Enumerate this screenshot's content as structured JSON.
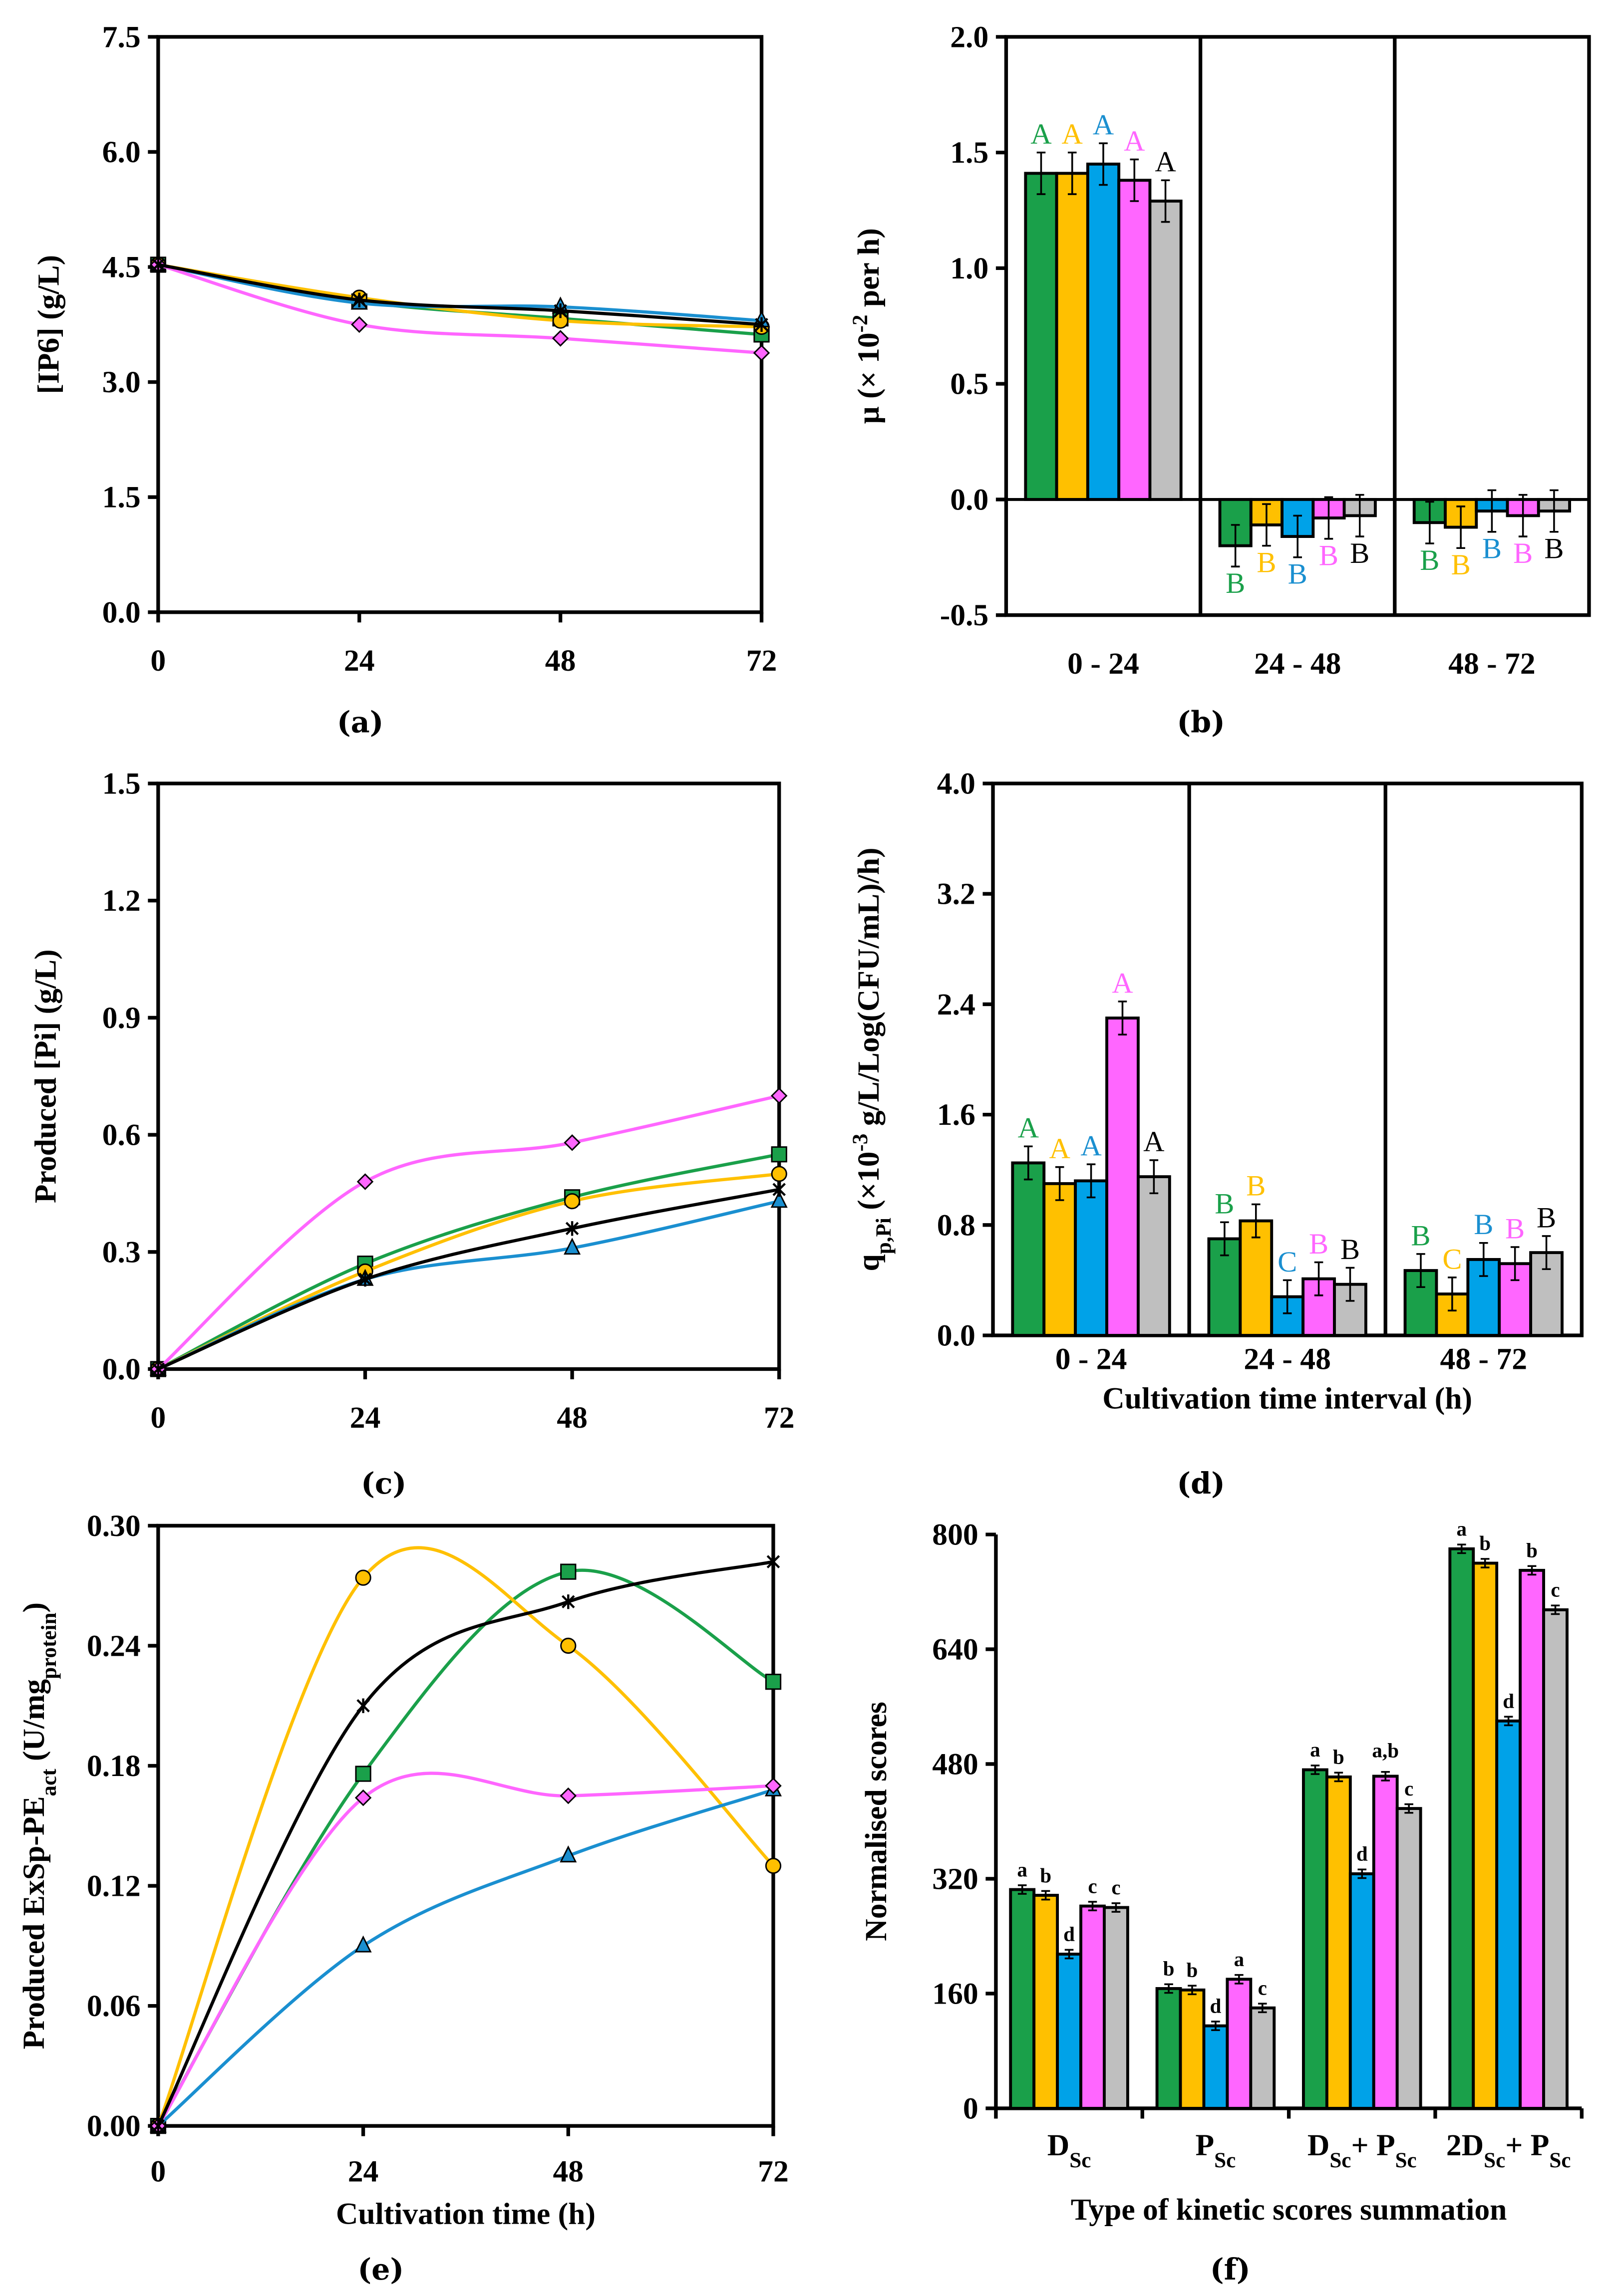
{
  "colors": {
    "green": "#1aa04a",
    "yellow": "#ffc000",
    "blue": "#1a9ad6",
    "pink": "#ff66ff",
    "gray": "#bfbfbf",
    "black": "#000000"
  },
  "chart_data": [
    {
      "panel": "(a)",
      "type": "line",
      "ylabel": [
        [
          "[IP6] (g/L)",
          ""
        ]
      ],
      "xlabel": [],
      "x": [
        0,
        24,
        48,
        72
      ],
      "xticks": [
        "0",
        "24",
        "48",
        "72"
      ],
      "xlim": [
        0,
        72
      ],
      "ylim": [
        0,
        7.5
      ],
      "yticks": [
        "0.0",
        "1.5",
        "3.0",
        "4.5",
        "6.0",
        "7.5"
      ],
      "series": [
        {
          "name": "green",
          "color": "#1aa04a",
          "marker": "square",
          "values": [
            4.53,
            4.05,
            3.83,
            3.62
          ]
        },
        {
          "name": "yellow",
          "color": "#ffc000",
          "marker": "circle",
          "values": [
            4.53,
            4.1,
            3.8,
            3.72
          ]
        },
        {
          "name": "blue",
          "color": "#1a8fd0",
          "marker": "triangle",
          "values": [
            4.53,
            4.03,
            3.98,
            3.8
          ]
        },
        {
          "name": "pink",
          "color": "#ff66ff",
          "marker": "diamond",
          "values": [
            4.53,
            3.75,
            3.57,
            3.38
          ]
        },
        {
          "name": "black",
          "color": "#000000",
          "marker": "star",
          "values": [
            4.53,
            4.07,
            3.93,
            3.75
          ]
        }
      ]
    },
    {
      "panel": "(b)",
      "type": "bar",
      "ylabel": [
        [
          "μ (× 10",
          ""
        ],
        [
          "-2",
          "sup"
        ],
        [
          " per h)",
          ""
        ]
      ],
      "xlabel": [],
      "categories": [
        [
          [
            "0 - 24",
            ""
          ]
        ],
        [
          [
            "24 - 48",
            ""
          ]
        ],
        [
          [
            "48 - 72",
            ""
          ]
        ]
      ],
      "ylim": [
        -0.5,
        2.0
      ],
      "yticks": [
        "-0.5",
        "0.0",
        "0.5",
        "1.0",
        "1.5",
        "2.0"
      ],
      "error": 0.09,
      "series_colors": [
        "#1aa04a",
        "#ffc000",
        "#00a2e8",
        "#ff66ff",
        "#bfbfbf"
      ],
      "label_colors": [
        "#1aa04a",
        "#ffc000",
        "#1a8fd0",
        "#ff66ff",
        "#000000"
      ],
      "values": [
        [
          1.41,
          1.41,
          1.45,
          1.38,
          1.29
        ],
        [
          -0.2,
          -0.11,
          -0.16,
          -0.08,
          -0.07
        ],
        [
          -0.1,
          -0.12,
          -0.05,
          -0.07,
          -0.05
        ]
      ],
      "letters": [
        [
          "A",
          "A",
          "A",
          "A",
          "A"
        ],
        [
          "B",
          "B",
          "B",
          "B",
          "B"
        ],
        [
          "B",
          "B",
          "B",
          "B",
          "B"
        ]
      ]
    },
    {
      "panel": "(c)",
      "type": "line",
      "ylabel": [
        [
          "Produced [Pi] (g/L)",
          ""
        ]
      ],
      "xlabel": [],
      "x": [
        0,
        24,
        48,
        72
      ],
      "xticks": [
        "0",
        "24",
        "48",
        "72"
      ],
      "xlim": [
        0,
        72
      ],
      "ylim": [
        0,
        1.5
      ],
      "yticks": [
        "0.0",
        "0.3",
        "0.6",
        "0.9",
        "1.2",
        "1.5"
      ],
      "series": [
        {
          "name": "green",
          "color": "#1aa04a",
          "marker": "square",
          "values": [
            0,
            0.27,
            0.44,
            0.55
          ]
        },
        {
          "name": "yellow",
          "color": "#ffc000",
          "marker": "circle",
          "values": [
            0,
            0.25,
            0.43,
            0.5
          ]
        },
        {
          "name": "blue",
          "color": "#1a8fd0",
          "marker": "triangle",
          "values": [
            0,
            0.23,
            0.31,
            0.43
          ]
        },
        {
          "name": "pink",
          "color": "#ff66ff",
          "marker": "diamond",
          "values": [
            0,
            0.48,
            0.58,
            0.7
          ]
        },
        {
          "name": "black",
          "color": "#000000",
          "marker": "star",
          "values": [
            0,
            0.23,
            0.36,
            0.46
          ]
        }
      ]
    },
    {
      "panel": "(d)",
      "type": "bar",
      "ylabel": [
        [
          "q",
          ""
        ],
        [
          "p,Pi",
          "sub"
        ],
        [
          " (×10",
          ""
        ],
        [
          "-3",
          "sup"
        ],
        [
          " g/L/Log(CFU/mL)/h)",
          ""
        ]
      ],
      "xlabel": [
        [
          "Cultivation time interval (h)",
          ""
        ]
      ],
      "categories": [
        [
          [
            "0 - 24",
            ""
          ]
        ],
        [
          [
            "24 - 48",
            ""
          ]
        ],
        [
          [
            "48 - 72",
            ""
          ]
        ]
      ],
      "ylim": [
        0,
        4.0
      ],
      "yticks": [
        "0.0",
        "0.8",
        "1.6",
        "2.4",
        "3.2",
        "4.0"
      ],
      "error": 0.12,
      "series_colors": [
        "#1aa04a",
        "#ffc000",
        "#00a2e8",
        "#ff66ff",
        "#bfbfbf"
      ],
      "label_colors": [
        "#1aa04a",
        "#ffc000",
        "#1a8fd0",
        "#ff66ff",
        "#000000"
      ],
      "values": [
        [
          1.25,
          1.1,
          1.12,
          2.3,
          1.15
        ],
        [
          0.7,
          0.83,
          0.28,
          0.41,
          0.37
        ],
        [
          0.47,
          0.3,
          0.55,
          0.52,
          0.6
        ]
      ],
      "letters": [
        [
          "A",
          "A",
          "A",
          "A",
          "A"
        ],
        [
          "B",
          "B",
          "C",
          "B",
          "B"
        ],
        [
          "B",
          "C",
          "B",
          "B",
          "B"
        ]
      ]
    },
    {
      "panel": "(e)",
      "type": "line",
      "ylabel": [
        [
          "Produced ExSp-PE",
          ""
        ],
        [
          "act",
          "sub"
        ],
        [
          " (U/mg",
          ""
        ],
        [
          "protein",
          "sub"
        ],
        [
          ")",
          ""
        ]
      ],
      "xlabel": [
        [
          "Cultivation time (h)",
          ""
        ]
      ],
      "x": [
        0,
        24,
        48,
        72
      ],
      "xticks": [
        "0",
        "24",
        "48",
        "72"
      ],
      "xlim": [
        0,
        72
      ],
      "ylim": [
        0,
        0.3
      ],
      "yticks": [
        "0.00",
        "0.06",
        "0.12",
        "0.18",
        "0.24",
        "0.30"
      ],
      "series": [
        {
          "name": "green",
          "color": "#1aa04a",
          "marker": "square",
          "values": [
            0,
            0.176,
            0.277,
            0.222
          ]
        },
        {
          "name": "yellow",
          "color": "#ffc000",
          "marker": "circle",
          "values": [
            0,
            0.274,
            0.24,
            0.13
          ]
        },
        {
          "name": "blue",
          "color": "#1a8fd0",
          "marker": "triangle",
          "values": [
            0,
            0.09,
            0.135,
            0.168
          ]
        },
        {
          "name": "pink",
          "color": "#ff66ff",
          "marker": "diamond",
          "values": [
            0,
            0.164,
            0.165,
            0.17
          ]
        },
        {
          "name": "black",
          "color": "#000000",
          "marker": "star",
          "values": [
            0,
            0.21,
            0.262,
            0.282
          ]
        }
      ]
    },
    {
      "panel": "(f)",
      "type": "bar",
      "ylabel": [
        [
          "Normalised scores",
          ""
        ]
      ],
      "xlabel": [
        [
          "Type of kinetic scores summation",
          ""
        ]
      ],
      "categories": [
        [
          [
            "D",
            ""
          ],
          [
            "Sc",
            "sub"
          ]
        ],
        [
          [
            "P",
            ""
          ],
          [
            "Sc",
            "sub"
          ]
        ],
        [
          [
            "D",
            ""
          ],
          [
            "Sc",
            "sub"
          ],
          [
            "+ P",
            ""
          ],
          [
            "Sc",
            "sub"
          ]
        ],
        [
          [
            "2D",
            ""
          ],
          [
            "Sc",
            "sub"
          ],
          [
            "+ P",
            ""
          ],
          [
            "Sc",
            "sub"
          ]
        ]
      ],
      "ylim": [
        0,
        800
      ],
      "yticks": [
        "0",
        "160",
        "320",
        "480",
        "640",
        "800"
      ],
      "error": 6,
      "series_colors": [
        "#1aa04a",
        "#ffc000",
        "#00a2e8",
        "#ff66ff",
        "#bfbfbf"
      ],
      "label_colors": [
        "#000000",
        "#000000",
        "#000000",
        "#000000",
        "#000000"
      ],
      "values": [
        [
          305,
          297,
          215,
          282,
          280
        ],
        [
          167,
          165,
          115,
          180,
          140
        ],
        [
          472,
          462,
          327,
          463,
          418
        ],
        [
          780,
          760,
          540,
          750,
          695
        ]
      ],
      "letters": [
        [
          "a",
          "b",
          "d",
          "c",
          "c"
        ],
        [
          "b",
          "b",
          "d",
          "a",
          "c"
        ],
        [
          "a",
          "b",
          "d",
          "a,b",
          "c"
        ],
        [
          "a",
          "b",
          "d",
          "b",
          "c"
        ]
      ]
    }
  ]
}
